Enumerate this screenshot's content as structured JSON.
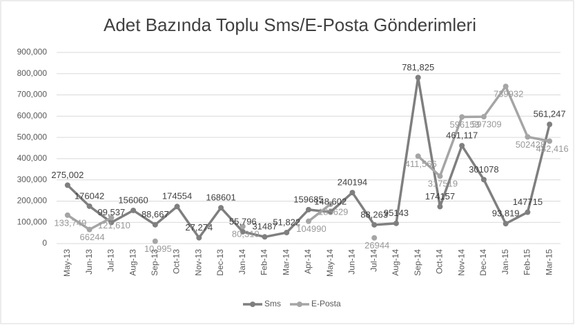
{
  "chart_data": {
    "type": "line",
    "title": "Adet Bazında Toplu Sms/E-Posta Gönderimleri",
    "categories": [
      "May-13",
      "Jun-13",
      "Jul-13",
      "Aug-13",
      "Sep-13",
      "Oct-13",
      "Nov-13",
      "Dec-13",
      "Jan-14",
      "Feb-14",
      "Mar-14",
      "Apr-14",
      "May-14",
      "Jun-14",
      "Jul-14",
      "Aug-14",
      "Sep-14",
      "Oct-14",
      "Nov-14",
      "Dec-14",
      "Jan-15",
      "Feb-15",
      "Mar-15"
    ],
    "series": [
      {
        "name": "Sms",
        "color": "#7f7f7f",
        "label_color": "#404040",
        "values": [
          275002,
          176042,
          99537,
          156060,
          88667,
          174554,
          27274,
          168601,
          55796,
          31487,
          51822,
          159685,
          148602,
          240194,
          88263,
          95143,
          781825,
          174157,
          461117,
          301078,
          93819,
          147715,
          561247
        ],
        "value_labels": [
          "275,002",
          "176042",
          "99,537",
          "156060",
          "88,667",
          "174554",
          "27,274",
          "168601",
          "55,796",
          "31487",
          "51,822",
          "159685",
          "148,602",
          "240194",
          "88,263",
          "95143",
          "781,825",
          "174157",
          "461,117",
          "301078",
          "93,819",
          "147715",
          "561,247"
        ]
      },
      {
        "name": "E-Posta",
        "color": "#a5a5a5",
        "label_color": "#999999",
        "values": [
          133749,
          66244,
          121610,
          null,
          10995,
          null,
          null,
          null,
          80310,
          null,
          null,
          104990,
          185629,
          null,
          26944,
          null,
          411566,
          317519,
          596153,
          597309,
          739932,
          502428,
          482416
        ],
        "value_labels": [
          "133,749",
          "66244",
          "121,610",
          null,
          "10,995",
          null,
          null,
          null,
          "80,310",
          null,
          null,
          "104990",
          "185629",
          null,
          "26944",
          null,
          "411,566",
          "317519",
          "596153",
          "597309",
          "739932",
          "502428",
          "482,416"
        ]
      }
    ],
    "ylim": [
      0,
      900000
    ],
    "yticks": [
      0,
      {
        "value": 100000,
        "label": "100,000"
      },
      {
        "value": 200000,
        "label": "200,000"
      },
      {
        "value": 300000,
        "label": "300,000"
      },
      {
        "value": 400000,
        "label": "400,000"
      },
      {
        "value": 500000,
        "label": "500,000"
      },
      {
        "value": 600000,
        "label": "600,000"
      },
      {
        "value": 700000,
        "label": "700,000"
      },
      {
        "value": 800000,
        "label": "800,000"
      },
      {
        "value": 900000,
        "label": "900,000"
      }
    ],
    "grid": true,
    "legend": "bottom"
  }
}
